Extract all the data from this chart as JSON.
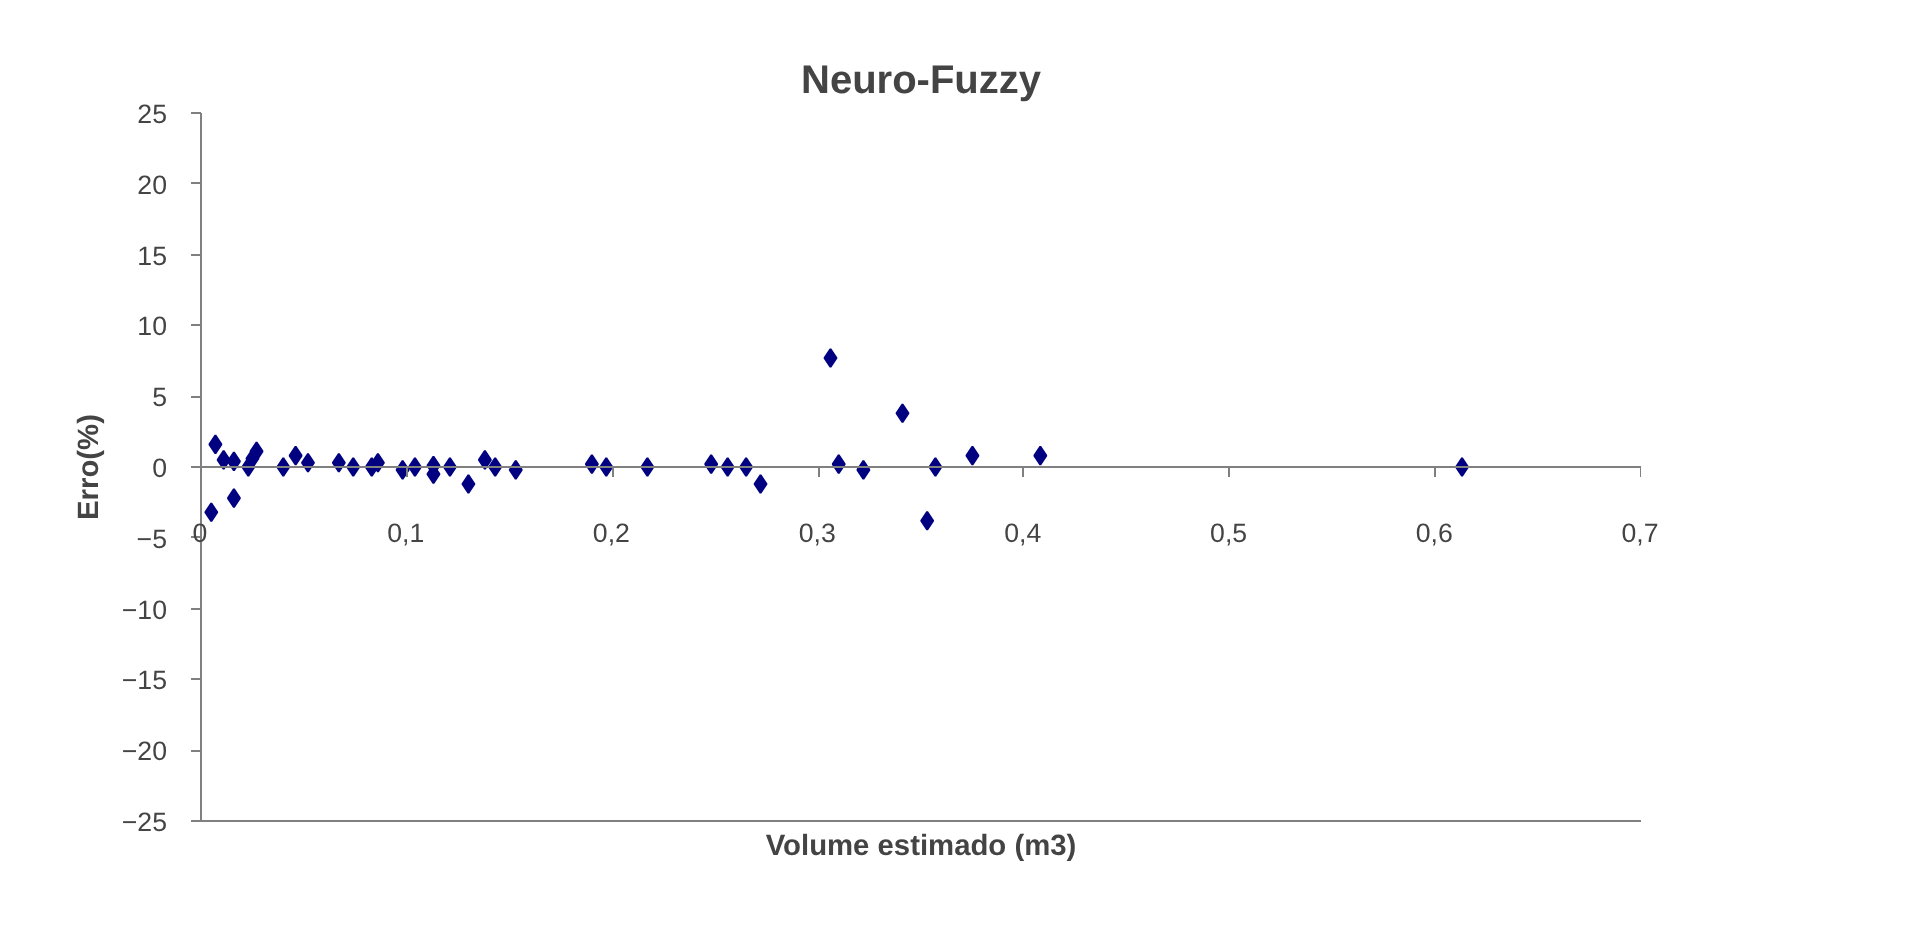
{
  "chart_data": {
    "type": "scatter",
    "title": "Neuro-Fuzzy",
    "xlabel": "Volume estimado (m3)",
    "ylabel": "Erro(%)",
    "marker": "diamond",
    "grid": false,
    "xlim": [
      0,
      0.7
    ],
    "ylim": [
      -25,
      25
    ],
    "xticks": [
      0,
      {
        "value": 0.1,
        "label": "0,1"
      },
      {
        "value": 0.2,
        "label": "0,2"
      },
      {
        "value": 0.3,
        "label": "0,3"
      },
      {
        "value": 0.4,
        "label": "0,4"
      },
      {
        "value": 0.5,
        "label": "0,5"
      },
      {
        "value": 0.6,
        "label": "0,6"
      },
      {
        "value": 0.7,
        "label": "0,7"
      }
    ],
    "yticks": [
      -25,
      -20,
      -15,
      -10,
      -5,
      0,
      5,
      10,
      15,
      20,
      25
    ],
    "series": [
      {
        "color": "#000080",
        "x": [
          0.005,
          0.007,
          0.011,
          0.016,
          0.016,
          0.023,
          0.025,
          0.027,
          0.04,
          0.046,
          0.052,
          0.067,
          0.074,
          0.083,
          0.086,
          0.098,
          0.104,
          0.113,
          0.113,
          0.121,
          0.13,
          0.138,
          0.143,
          0.153,
          0.19,
          0.197,
          0.217,
          0.248,
          0.256,
          0.265,
          0.272,
          0.306,
          0.31,
          0.322,
          0.341,
          0.353,
          0.357,
          0.375,
          0.408,
          0.613
        ],
        "values": [
          -3.2,
          1.6,
          0.5,
          0.4,
          -2.2,
          0,
          0.6,
          1.1,
          0,
          0.8,
          0.3,
          0.3,
          0,
          0,
          0.3,
          -0.2,
          0,
          0.1,
          -0.5,
          0,
          -1.2,
          0.5,
          0,
          -0.2,
          0.2,
          0,
          0,
          0.2,
          0,
          0,
          -1.2,
          7.7,
          0.2,
          -0.2,
          3.8,
          -3.8,
          0,
          0.8,
          0.8,
          0
        ]
      }
    ]
  }
}
